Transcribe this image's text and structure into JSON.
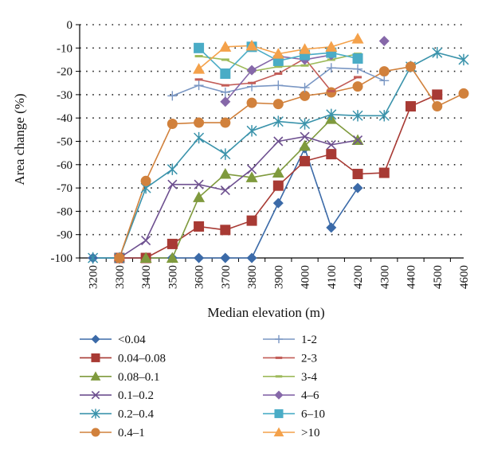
{
  "chart_data": {
    "type": "line",
    "title": "",
    "xlabel": "Median elevation (m)",
    "ylabel": "Area change (%)",
    "x_ticks": [
      "3200",
      "3300",
      "3400",
      "3500",
      "3600",
      "3700",
      "3800",
      "3900",
      "4000",
      "4100",
      "4200",
      "4300",
      "4400",
      "4500",
      "4600"
    ],
    "y_ticks": [
      "0",
      "-10",
      "-20",
      "-30",
      "-40",
      "-50",
      "-60",
      "-70",
      "-80",
      "-90",
      "-100"
    ],
    "ylim": [
      -100,
      0
    ],
    "xlim": [
      3200,
      4600
    ],
    "grid": "horizontal dotted",
    "legend_placement": "bottom",
    "series": [
      {
        "name": "<0.04",
        "color": "#3b6aa8",
        "marker": "diamond",
        "points": [
          [
            3200,
            -100
          ],
          [
            3300,
            -100
          ],
          [
            3400,
            -100
          ],
          [
            3500,
            -100
          ],
          [
            3600,
            -100
          ],
          [
            3700,
            -100
          ],
          [
            3800,
            -100
          ],
          [
            3900,
            -76.5
          ],
          [
            4000,
            -53
          ],
          [
            4100,
            -87
          ],
          [
            4200,
            -70
          ]
        ]
      },
      {
        "name": "0.04–0.08",
        "color": "#a83a34",
        "marker": "square",
        "points": [
          [
            3300,
            -100
          ],
          [
            3400,
            -100
          ],
          [
            3500,
            -94
          ],
          [
            3600,
            -86.5
          ],
          [
            3700,
            -88
          ],
          [
            3800,
            -84
          ],
          [
            3900,
            -69
          ],
          [
            4000,
            -58.5
          ],
          [
            4100,
            -55.5
          ],
          [
            4200,
            -64
          ],
          [
            4300,
            -63.5
          ],
          [
            4400,
            -35
          ],
          [
            4500,
            -30
          ]
        ]
      },
      {
        "name": "0.08–0.1",
        "color": "#7f9a3d",
        "marker": "triangle",
        "points": [
          [
            3400,
            -100
          ],
          [
            3500,
            -100
          ],
          [
            3600,
            -74
          ],
          [
            3700,
            -64
          ],
          [
            3800,
            -65.5
          ],
          [
            3900,
            -63.5
          ],
          [
            4000,
            -52
          ],
          [
            4100,
            -40.5
          ],
          [
            4200,
            -49.5
          ]
        ]
      },
      {
        "name": "0.1–0.2",
        "color": "#6e5090",
        "marker": "x",
        "points": [
          [
            3300,
            -100
          ],
          [
            3400,
            -92.5
          ],
          [
            3500,
            -68.5
          ],
          [
            3600,
            -68.5
          ],
          [
            3700,
            -71
          ],
          [
            3800,
            -62
          ],
          [
            3900,
            -50
          ],
          [
            4000,
            -48
          ],
          [
            4100,
            -51.5
          ],
          [
            4200,
            -49.5
          ]
        ]
      },
      {
        "name": "0.2–0.4",
        "color": "#3a93ab",
        "marker": "star",
        "points": [
          [
            3200,
            -100
          ],
          [
            3300,
            -100
          ],
          [
            3400,
            -70
          ],
          [
            3500,
            -62
          ],
          [
            3600,
            -48.5
          ],
          [
            3700,
            -55.5
          ],
          [
            3800,
            -45.5
          ],
          [
            3900,
            -41.5
          ],
          [
            4000,
            -42.5
          ],
          [
            4100,
            -38.5
          ],
          [
            4200,
            -39
          ],
          [
            4300,
            -39
          ],
          [
            4400,
            -18
          ],
          [
            4500,
            -12
          ],
          [
            4600,
            -15
          ]
        ]
      },
      {
        "name": "0.4–1",
        "color": "#d1813c",
        "marker": "circle",
        "points": [
          [
            3300,
            -100
          ],
          [
            3400,
            -67
          ],
          [
            3500,
            -42.5
          ],
          [
            3600,
            -42
          ],
          [
            3700,
            -42
          ],
          [
            3800,
            -33.5
          ],
          [
            3900,
            -34
          ],
          [
            4000,
            -30.5
          ],
          [
            4100,
            -29
          ],
          [
            4200,
            -26.5
          ],
          [
            4300,
            -20
          ],
          [
            4400,
            -18
          ],
          [
            4500,
            -35
          ],
          [
            4600,
            -29.5
          ]
        ]
      },
      {
        "name": "1-2",
        "color": "#7a97c4",
        "marker": "plus",
        "points": [
          [
            3500,
            -30.5
          ],
          [
            3600,
            -26
          ],
          [
            3700,
            -29
          ],
          [
            3800,
            -26.5
          ],
          [
            3900,
            -26
          ],
          [
            4000,
            -27
          ],
          [
            4100,
            -18.5
          ],
          [
            4200,
            -19
          ],
          [
            4300,
            -24
          ]
        ]
      },
      {
        "name": "2-3",
        "color": "#c25c57",
        "marker": "dash",
        "points": [
          [
            3600,
            -23.5
          ],
          [
            3700,
            -26
          ],
          [
            3800,
            -25
          ],
          [
            3900,
            -21
          ],
          [
            4000,
            -14.5
          ],
          [
            4100,
            -28.5
          ],
          [
            4200,
            -22.5
          ]
        ]
      },
      {
        "name": "3-4",
        "color": "#9dba5a",
        "marker": "dash",
        "points": [
          [
            3600,
            -13.5
          ],
          [
            3700,
            -15
          ],
          [
            3800,
            -20
          ],
          [
            3900,
            -18
          ],
          [
            4000,
            -17.5
          ],
          [
            4100,
            -15
          ],
          [
            4200,
            -12.5
          ]
        ]
      },
      {
        "name": "4–6",
        "color": "#8668a9",
        "marker": "diamond",
        "points": [
          [
            3700,
            -33
          ],
          [
            3800,
            -19.5
          ],
          [
            3900,
            -13.5
          ],
          [
            4000,
            -15
          ],
          [
            4100,
            -13
          ]
        ],
        "isolated_points": [
          [
            4300,
            -7
          ]
        ]
      },
      {
        "name": "6–10",
        "color": "#4aacc6",
        "marker": "square",
        "points": [
          [
            3600,
            -10
          ],
          [
            3700,
            -21
          ],
          [
            3800,
            -9.5
          ],
          [
            3900,
            -15.5
          ],
          [
            4000,
            -13
          ],
          [
            4100,
            -12
          ],
          [
            4200,
            -14.5
          ]
        ]
      },
      {
        "name": ">10",
        "color": "#f4a14a",
        "marker": "triangle",
        "points": [
          [
            3600,
            -19
          ],
          [
            3700,
            -9.5
          ],
          [
            3800,
            -9
          ],
          [
            3900,
            -12.5
          ],
          [
            4000,
            -10.5
          ],
          [
            4100,
            -9.5
          ],
          [
            4200,
            -6
          ]
        ]
      }
    ]
  }
}
